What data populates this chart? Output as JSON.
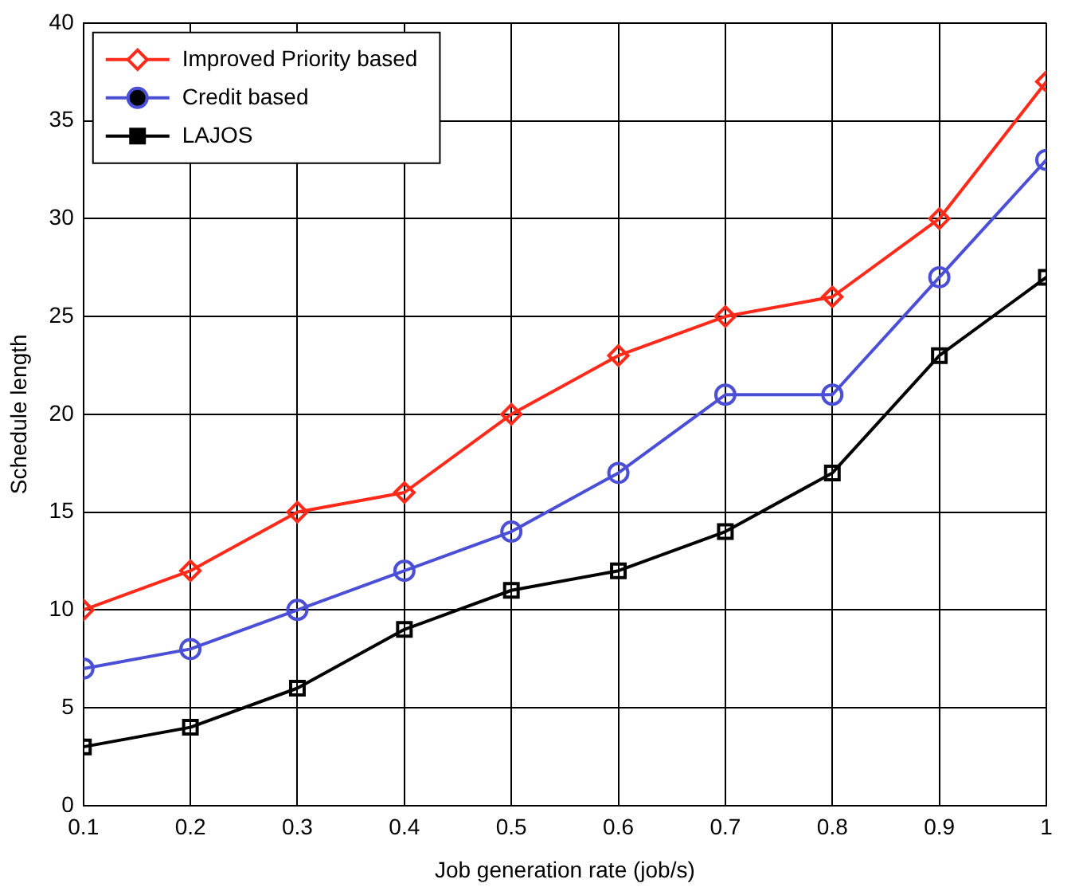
{
  "chart_data": {
    "type": "line",
    "xlabel": "Job generation rate (job/s)",
    "ylabel": "Schedule length",
    "x": [
      0.1,
      0.2,
      0.3,
      0.4,
      0.5,
      0.6,
      0.7,
      0.8,
      0.9,
      1
    ],
    "series": [
      {
        "name": "Improved Priority based",
        "color": "#ff2a1a",
        "marker": "diamond",
        "values": [
          10,
          12,
          15,
          16,
          20,
          23,
          25,
          26,
          30,
          37
        ]
      },
      {
        "name": "Credit based",
        "color": "#4a4fd6",
        "marker": "circle",
        "values": [
          7,
          8,
          10,
          12,
          14,
          17,
          21,
          21,
          27,
          33
        ]
      },
      {
        "name": "LAJOS",
        "color": "#000000",
        "marker": "square",
        "values": [
          3,
          4,
          6,
          9,
          11,
          12,
          14,
          17,
          23,
          27
        ]
      }
    ],
    "xlim": [
      0.1,
      1
    ],
    "xticks": [
      0.1,
      0.2,
      0.3,
      0.4,
      0.5,
      0.6,
      0.7,
      0.8,
      0.9,
      1
    ],
    "ylim": [
      0,
      40
    ],
    "yticks": [
      0,
      5,
      10,
      15,
      20,
      25,
      30,
      35,
      40
    ],
    "grid": true,
    "legend": "top left",
    "line_style": "solid"
  }
}
